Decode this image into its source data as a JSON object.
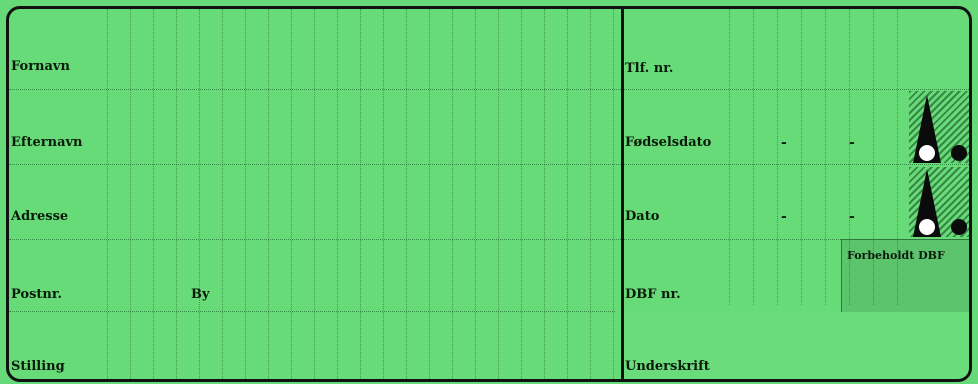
{
  "form": {
    "left_fields": {
      "fornavn": "Fornavn",
      "efternavn": "Efternavn",
      "adresse": "Adresse",
      "postnr": "Postnr.",
      "by": "By",
      "stilling": "Stilling"
    },
    "right_fields": {
      "tlf": "Tlf. nr.",
      "fodselsdato": "Fødselsdato",
      "dato": "Dato",
      "dbf_nr": "DBF nr.",
      "underskrift": "Underskrift"
    },
    "date_separator": "-",
    "reserved_box_label": "Forbeholdt DBF"
  },
  "colors": {
    "card_background": "#66db78",
    "ink": "#0b1a0b"
  }
}
